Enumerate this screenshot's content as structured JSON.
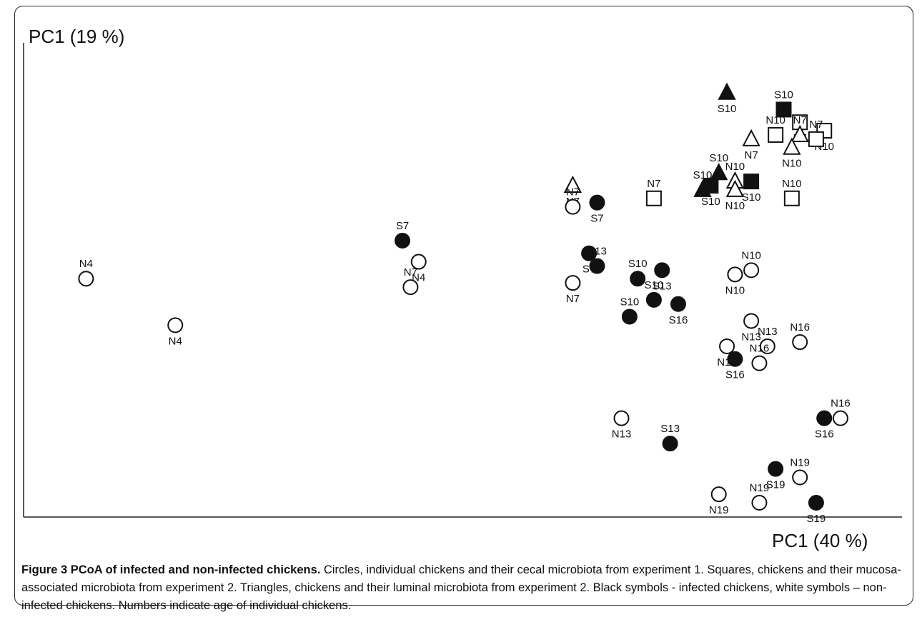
{
  "figure": {
    "caption_title": "Figure 3 PCoA of infected and non-infected chickens.",
    "caption_text": " Circles, individual chickens and their cecal microbiota from experiment 1. Squares, chickens and their mucosa-associated microbiota from experiment 2. Triangles, chickens and their luminal microbiota from experiment 2. Black symbols - infected chickens, white symbols – non-infected chickens. Numbers indicate age of individual chickens."
  },
  "chart_data": {
    "type": "scatter",
    "ylabel": "PC1 (19 %)",
    "xlabel": "PC1 (40 %)",
    "axes": "left and bottom only, no tick labels",
    "grid": false,
    "colors": {
      "infected": "#111111",
      "noninfected": "#ffffff",
      "stroke": "#111111"
    },
    "points": [
      {
        "label": "N4",
        "shape": "circle",
        "filled": false,
        "x": 0.04,
        "y": 0.53
      },
      {
        "label": "N4",
        "shape": "circle",
        "filled": false,
        "x": 0.15,
        "y": 0.42
      },
      {
        "label": "S7",
        "shape": "circle",
        "filled": true,
        "x": 0.43,
        "y": 0.62
      },
      {
        "label": "N4",
        "shape": "circle",
        "filled": false,
        "x": 0.45,
        "y": 0.57
      },
      {
        "label": "N7",
        "shape": "circle",
        "filled": false,
        "x": 0.44,
        "y": 0.51
      },
      {
        "label": "N7",
        "shape": "triangle",
        "filled": false,
        "x": 0.64,
        "y": 0.75
      },
      {
        "label": "N7",
        "shape": "circle",
        "filled": false,
        "x": 0.64,
        "y": 0.7
      },
      {
        "label": "S7",
        "shape": "circle",
        "filled": true,
        "x": 0.67,
        "y": 0.71
      },
      {
        "label": "N7",
        "shape": "square",
        "filled": false,
        "x": 0.74,
        "y": 0.72
      },
      {
        "label": "S7",
        "shape": "circle",
        "filled": true,
        "x": 0.66,
        "y": 0.59
      },
      {
        "label": "S13",
        "shape": "circle",
        "filled": true,
        "x": 0.67,
        "y": 0.56
      },
      {
        "label": "N7",
        "shape": "circle",
        "filled": false,
        "x": 0.64,
        "y": 0.52
      },
      {
        "label": "S10",
        "shape": "circle",
        "filled": true,
        "x": 0.72,
        "y": 0.53
      },
      {
        "label": "S13",
        "shape": "circle",
        "filled": true,
        "x": 0.75,
        "y": 0.55
      },
      {
        "label": "S10",
        "shape": "circle",
        "filled": true,
        "x": 0.74,
        "y": 0.48
      },
      {
        "label": "S16",
        "shape": "circle",
        "filled": true,
        "x": 0.77,
        "y": 0.47
      },
      {
        "label": "S10",
        "shape": "circle",
        "filled": true,
        "x": 0.71,
        "y": 0.44
      },
      {
        "label": "S10",
        "shape": "triangle",
        "filled": true,
        "x": 0.83,
        "y": 0.97
      },
      {
        "label": "S10",
        "shape": "square",
        "filled": true,
        "x": 0.9,
        "y": 0.93
      },
      {
        "label": "N7",
        "shape": "square",
        "filled": false,
        "x": 0.92,
        "y": 0.9
      },
      {
        "label": "N10",
        "shape": "square",
        "filled": false,
        "x": 0.89,
        "y": 0.87
      },
      {
        "label": "N7",
        "shape": "triangle",
        "filled": false,
        "x": 0.86,
        "y": 0.86
      },
      {
        "label": "N7",
        "shape": "triangle",
        "filled": false,
        "x": 0.92,
        "y": 0.87
      },
      {
        "label": "N10",
        "shape": "square",
        "filled": false,
        "x": 0.95,
        "y": 0.88
      },
      {
        "label": "N7",
        "shape": "square",
        "filled": false,
        "x": 0.94,
        "y": 0.86
      },
      {
        "label": "N10",
        "shape": "triangle",
        "filled": false,
        "x": 0.91,
        "y": 0.84
      },
      {
        "label": "S10",
        "shape": "triangle",
        "filled": true,
        "x": 0.82,
        "y": 0.78
      },
      {
        "label": "S10",
        "shape": "square",
        "filled": true,
        "x": 0.81,
        "y": 0.75
      },
      {
        "label": "N10",
        "shape": "triangle",
        "filled": false,
        "x": 0.84,
        "y": 0.76
      },
      {
        "label": "S10",
        "shape": "square",
        "filled": true,
        "x": 0.86,
        "y": 0.76
      },
      {
        "label": "S10",
        "shape": "triangle",
        "filled": true,
        "x": 0.8,
        "y": 0.74
      },
      {
        "label": "N10",
        "shape": "triangle",
        "filled": false,
        "x": 0.84,
        "y": 0.74
      },
      {
        "label": "N10",
        "shape": "square",
        "filled": false,
        "x": 0.91,
        "y": 0.72
      },
      {
        "label": "N10",
        "shape": "circle",
        "filled": false,
        "x": 0.84,
        "y": 0.54
      },
      {
        "label": "N10",
        "shape": "circle",
        "filled": false,
        "x": 0.86,
        "y": 0.55
      },
      {
        "label": "N13",
        "shape": "circle",
        "filled": false,
        "x": 0.86,
        "y": 0.43
      },
      {
        "label": "N16",
        "shape": "circle",
        "filled": false,
        "x": 0.92,
        "y": 0.38
      },
      {
        "label": "N10",
        "shape": "circle",
        "filled": false,
        "x": 0.83,
        "y": 0.37
      },
      {
        "label": "N13",
        "shape": "circle",
        "filled": false,
        "x": 0.88,
        "y": 0.37
      },
      {
        "label": "S16",
        "shape": "circle",
        "filled": true,
        "x": 0.84,
        "y": 0.34
      },
      {
        "label": "N16",
        "shape": "circle",
        "filled": false,
        "x": 0.87,
        "y": 0.33
      },
      {
        "label": "N13",
        "shape": "circle",
        "filled": false,
        "x": 0.7,
        "y": 0.2
      },
      {
        "label": "S13",
        "shape": "circle",
        "filled": true,
        "x": 0.76,
        "y": 0.14
      },
      {
        "label": "S16",
        "shape": "circle",
        "filled": true,
        "x": 0.95,
        "y": 0.2
      },
      {
        "label": "N16",
        "shape": "circle",
        "filled": false,
        "x": 0.97,
        "y": 0.2
      },
      {
        "label": "S19",
        "shape": "circle",
        "filled": true,
        "x": 0.89,
        "y": 0.08
      },
      {
        "label": "N19",
        "shape": "circle",
        "filled": false,
        "x": 0.92,
        "y": 0.06
      },
      {
        "label": "N19",
        "shape": "circle",
        "filled": false,
        "x": 0.82,
        "y": 0.02
      },
      {
        "label": "N19",
        "shape": "circle",
        "filled": false,
        "x": 0.87,
        "y": 0.0
      },
      {
        "label": "S19",
        "shape": "circle",
        "filled": true,
        "x": 0.94,
        "y": 0.0
      }
    ]
  }
}
